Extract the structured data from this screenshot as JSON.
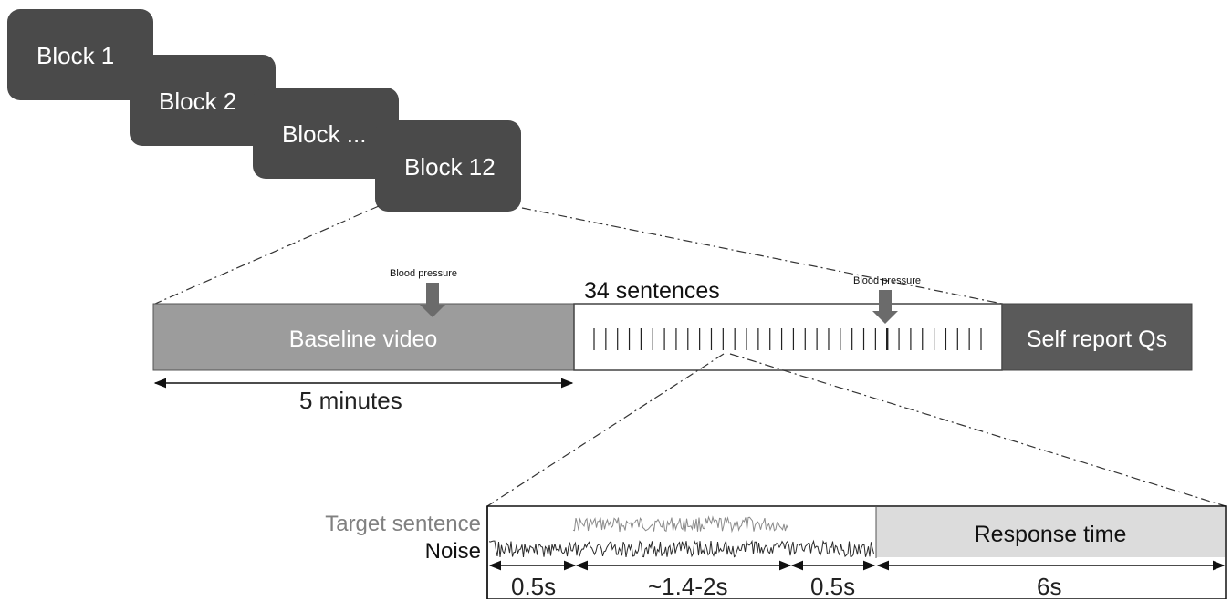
{
  "blocks": [
    {
      "label": "Block 1"
    },
    {
      "label": "Block 2"
    },
    {
      "label": "Block ..."
    },
    {
      "label": "Block 12"
    }
  ],
  "block_structure": {
    "baseline_label": "Baseline video",
    "sentences_label": "34 sentences",
    "self_report_label": "Self report Qs",
    "bp_label_1": "Blood pressure",
    "bp_label_2": "Blood pressure",
    "baseline_duration": "5 minutes",
    "sentence_count": 34
  },
  "trial": {
    "target_label": "Target sentence",
    "noise_label": "Noise",
    "response_label": "Response time",
    "durations": [
      "0.5s",
      "~1.4-2s",
      "0.5s",
      "6s"
    ]
  },
  "colors": {
    "block_fill": "#4a4a4a",
    "baseline_fill": "#9c9c9c",
    "self_report_fill": "#5a5a5a",
    "response_fill": "#dcdcdc",
    "arrow_fill": "#6b6b6b",
    "target_wave": "#8a8a8a",
    "noise_wave": "#2a2a2a"
  }
}
